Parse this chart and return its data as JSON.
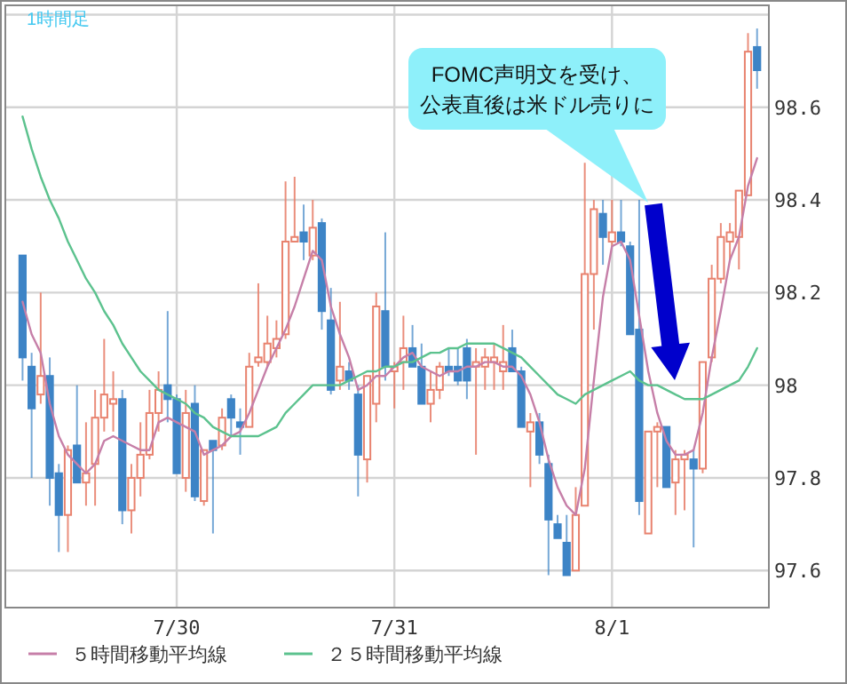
{
  "chart_data": {
    "type": "candlestick",
    "categories": [
      null,
      null,
      null,
      null,
      null,
      null,
      null,
      null,
      null,
      null,
      null,
      null,
      null,
      null,
      null,
      null,
      null,
      "7/30",
      null,
      null,
      null,
      null,
      null,
      null,
      null,
      null,
      null,
      null,
      null,
      null,
      null,
      null,
      null,
      null,
      null,
      null,
      null,
      null,
      null,
      null,
      null,
      "7/31",
      null,
      null,
      null,
      null,
      null,
      null,
      null,
      null,
      null,
      null,
      null,
      null,
      null,
      null,
      null,
      null,
      null,
      null,
      null,
      null,
      null,
      null,
      null,
      "8/1",
      null,
      null,
      null,
      null,
      null,
      null,
      null,
      null,
      null,
      null,
      null,
      null,
      null,
      null,
      null,
      null
    ],
    "ohlc": [
      [
        98.28,
        98.28,
        98.01,
        98.06
      ],
      [
        98.04,
        98.07,
        97.8,
        97.95
      ],
      [
        97.98,
        98.2,
        97.96,
        98.02
      ],
      [
        98.02,
        98.06,
        97.74,
        97.8
      ],
      [
        97.81,
        97.83,
        97.64,
        97.72
      ],
      [
        97.72,
        97.87,
        97.64,
        97.86
      ],
      [
        97.87,
        98.0,
        97.79,
        97.79
      ],
      [
        97.79,
        97.92,
        97.74,
        97.81
      ],
      [
        97.83,
        97.99,
        97.74,
        97.93
      ],
      [
        97.93,
        98.1,
        97.9,
        97.98
      ],
      [
        97.96,
        98.03,
        97.9,
        97.97
      ],
      [
        97.97,
        97.99,
        97.7,
        97.73
      ],
      [
        97.73,
        97.83,
        97.68,
        97.8
      ],
      [
        97.8,
        97.92,
        97.76,
        97.85
      ],
      [
        97.85,
        97.99,
        97.84,
        97.94
      ],
      [
        97.94,
        98.03,
        97.9,
        97.99
      ],
      [
        98.0,
        98.16,
        97.92,
        97.97
      ],
      [
        97.97,
        97.98,
        97.81,
        97.81
      ],
      [
        97.8,
        97.99,
        97.77,
        97.94
      ],
      [
        97.96,
        98.0,
        97.75,
        97.76
      ],
      [
        97.75,
        97.86,
        97.74,
        97.86
      ],
      [
        97.88,
        97.88,
        97.68,
        97.86
      ],
      [
        97.87,
        97.95,
        97.86,
        97.93
      ],
      [
        97.97,
        97.98,
        97.89,
        97.93
      ],
      [
        97.92,
        97.95,
        97.85,
        97.91
      ],
      [
        97.91,
        98.07,
        97.91,
        98.04
      ],
      [
        98.05,
        98.22,
        98.04,
        98.06
      ],
      [
        98.05,
        98.15,
        98.04,
        98.09
      ],
      [
        98.08,
        98.14,
        98.06,
        98.1
      ],
      [
        98.11,
        98.44,
        98.1,
        98.31
      ],
      [
        98.31,
        98.45,
        98.31,
        98.32
      ],
      [
        98.33,
        98.39,
        98.27,
        98.31
      ],
      [
        98.28,
        98.4,
        98.27,
        98.34
      ],
      [
        98.35,
        98.36,
        98.12,
        98.16
      ],
      [
        98.14,
        98.21,
        97.98,
        97.99
      ],
      [
        98.01,
        98.18,
        97.99,
        98.04
      ],
      [
        98.03,
        98.05,
        97.99,
        98.01
      ],
      [
        97.98,
        98.0,
        97.76,
        97.85
      ],
      [
        97.84,
        98.02,
        97.79,
        98.02
      ],
      [
        97.96,
        98.2,
        97.92,
        98.17
      ],
      [
        98.16,
        98.33,
        98.01,
        98.04
      ],
      [
        98.03,
        98.05,
        97.95,
        98.04
      ],
      [
        98.05,
        98.15,
        97.99,
        98.08
      ],
      [
        98.08,
        98.13,
        98.04,
        98.04
      ],
      [
        98.04,
        98.09,
        97.96,
        97.96
      ],
      [
        97.96,
        98.03,
        97.92,
        97.99
      ],
      [
        97.99,
        98.05,
        97.97,
        98.04
      ],
      [
        98.04,
        98.08,
        98.02,
        98.03
      ],
      [
        98.04,
        98.08,
        98.0,
        98.01
      ],
      [
        98.08,
        98.1,
        97.97,
        98.01
      ],
      [
        98.04,
        98.08,
        97.85,
        98.05
      ],
      [
        98.04,
        98.08,
        97.99,
        98.06
      ],
      [
        98.05,
        98.09,
        97.99,
        98.06
      ],
      [
        98.03,
        98.13,
        97.99,
        98.05
      ],
      [
        98.08,
        98.12,
        98.03,
        98.03
      ],
      [
        98.03,
        98.04,
        97.91,
        97.91
      ],
      [
        97.9,
        97.94,
        97.78,
        97.92
      ],
      [
        97.92,
        97.94,
        97.83,
        97.85
      ],
      [
        97.83,
        97.85,
        97.59,
        97.71
      ],
      [
        97.7,
        97.72,
        97.67,
        97.67
      ],
      [
        97.66,
        97.72,
        97.59,
        97.59
      ],
      [
        97.6,
        97.78,
        97.6,
        97.72
      ],
      [
        97.74,
        98.48,
        97.74,
        98.24
      ],
      [
        98.24,
        98.4,
        98.12,
        98.38
      ],
      [
        98.37,
        98.4,
        98.26,
        98.32
      ],
      [
        98.31,
        98.4,
        98.3,
        98.33
      ],
      [
        98.33,
        98.4,
        98.3,
        98.31
      ],
      [
        98.3,
        98.31,
        98.11,
        98.11
      ],
      [
        98.12,
        98.4,
        97.72,
        97.75
      ],
      [
        97.68,
        97.9,
        97.68,
        97.9
      ],
      [
        97.9,
        97.92,
        97.78,
        97.91
      ],
      [
        97.91,
        97.91,
        97.78,
        97.78
      ],
      [
        97.79,
        97.86,
        97.72,
        97.84
      ],
      [
        97.84,
        97.86,
        97.73,
        97.85
      ],
      [
        97.84,
        97.86,
        97.65,
        97.82
      ],
      [
        97.82,
        98.05,
        97.81,
        98.05
      ],
      [
        98.06,
        98.26,
        98.05,
        98.23
      ],
      [
        98.23,
        98.35,
        98.22,
        98.32
      ],
      [
        98.31,
        98.35,
        98.27,
        98.33
      ],
      [
        98.32,
        98.42,
        98.25,
        98.42
      ],
      [
        98.41,
        98.76,
        98.41,
        98.72
      ],
      [
        98.73,
        98.77,
        98.64,
        98.68
      ]
    ],
    "series": [
      {
        "name": "５時間移動平均線",
        "type": "line",
        "color": "#c67fa8",
        "values": [
          98.18,
          98.11,
          98.07,
          97.96,
          97.89,
          97.85,
          97.83,
          97.81,
          97.83,
          97.88,
          97.89,
          97.88,
          97.87,
          97.86,
          97.86,
          97.92,
          97.93,
          97.92,
          97.91,
          97.9,
          97.85,
          97.86,
          97.87,
          97.89,
          97.9,
          97.94,
          97.99,
          98.04,
          98.08,
          98.12,
          98.17,
          98.23,
          98.29,
          98.27,
          98.17,
          98.11,
          98.06,
          97.99,
          98.0,
          98.02,
          98.02,
          98.04,
          98.06,
          98.07,
          98.04,
          98.03,
          98.02,
          98.03,
          98.03,
          98.04,
          98.04,
          98.05,
          98.05,
          98.04,
          98.04,
          98.02,
          97.98,
          97.92,
          97.84,
          97.78,
          97.74,
          97.72,
          97.82,
          98.01,
          98.19,
          98.3,
          98.31,
          98.27,
          98.15,
          98.03,
          97.94,
          97.88,
          97.85,
          97.85,
          97.86,
          97.94,
          98.06,
          98.16,
          98.27,
          98.32,
          98.43,
          98.49
        ]
      },
      {
        "name": "２５時間移動平均線",
        "type": "line",
        "color": "#5cc28e",
        "values": [
          98.58,
          98.51,
          98.45,
          98.4,
          98.36,
          98.31,
          98.27,
          98.23,
          98.2,
          98.16,
          98.13,
          98.09,
          98.06,
          98.03,
          98.01,
          97.99,
          97.98,
          97.97,
          97.96,
          97.94,
          97.93,
          97.91,
          97.9,
          97.89,
          97.89,
          97.89,
          97.89,
          97.9,
          97.91,
          97.94,
          97.96,
          97.98,
          98.0,
          98.0,
          98.0,
          98.0,
          98.01,
          98.02,
          98.03,
          98.03,
          98.04,
          98.04,
          98.05,
          98.05,
          98.06,
          98.07,
          98.07,
          98.08,
          98.08,
          98.09,
          98.09,
          98.09,
          98.09,
          98.08,
          98.07,
          98.06,
          98.04,
          98.02,
          98.0,
          97.98,
          97.97,
          97.96,
          97.98,
          97.99,
          98.0,
          98.01,
          98.02,
          98.03,
          98.01,
          98.0,
          98.0,
          97.99,
          97.98,
          97.97,
          97.97,
          97.97,
          97.98,
          97.99,
          98.0,
          98.01,
          98.04,
          98.08
        ]
      }
    ],
    "ylim": [
      97.52,
      98.82
    ],
    "yticks": [
      97.6,
      97.8,
      98,
      98.2,
      98.4,
      98.6,
      {
        "value": 98.8,
        "label": null
      }
    ],
    "grid": true,
    "legend": "bottom",
    "annotations": [
      "1時間足",
      "FOMC声明文を受け、公表直後は米ドル売りに"
    ]
  }
}
